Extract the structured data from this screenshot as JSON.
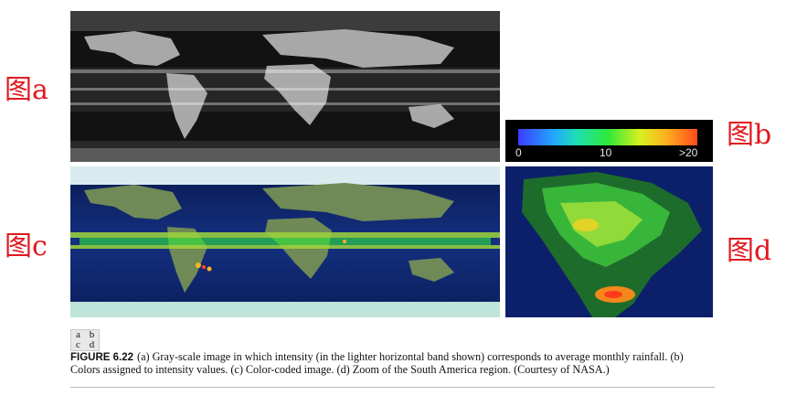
{
  "labels": {
    "a": "图a",
    "b": "图b",
    "c": "图c",
    "d": "图d"
  },
  "colorbar": {
    "ticks": [
      "0",
      "10",
      ">20"
    ],
    "colors": [
      "#3a3dff",
      "#22a8ff",
      "#1de0b0",
      "#2ee83a",
      "#d8f020",
      "#ffb320",
      "#ff4a1a"
    ]
  },
  "layout_key": [
    "a",
    "b",
    "c",
    "d"
  ],
  "caption": {
    "figure_number": "FIGURE 6.22",
    "text": "(a) Gray-scale image in which intensity (in the lighter horizontal band shown) corresponds to average monthly rainfall. (b) Colors assigned to intensity values. (c) Color-coded image. (d) Zoom of the South America region. (Courtesy of NASA.)"
  },
  "colors": {
    "label_red": "#e0191e",
    "ocean_dark": "#0b1c5c",
    "panel_black": "#111111"
  }
}
